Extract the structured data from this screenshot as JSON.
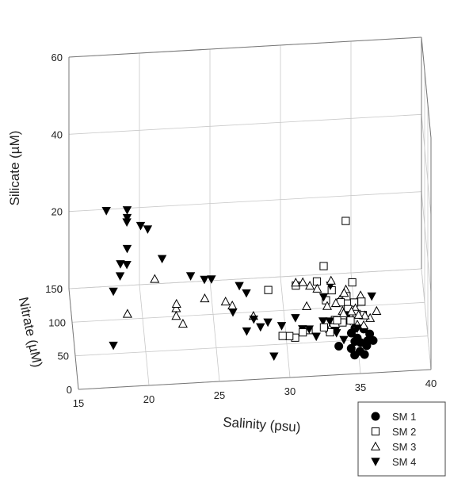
{
  "chart_data": {
    "type": "scatter",
    "projection": "3d",
    "xlabel": "Salinity (psu)",
    "ylabel": "Nitrate (µM)",
    "zlabel": "Silicate (µM)",
    "xlim": [
      15,
      40
    ],
    "ylim": [
      0,
      150
    ],
    "zlim": [
      0,
      60
    ],
    "x_ticks": [
      "15",
      "20",
      "25",
      "30",
      "35",
      "40"
    ],
    "y_ticks": [
      "0",
      "50",
      "100",
      "150"
    ],
    "z_ticks": [
      "0",
      "20",
      "40",
      "60"
    ],
    "grid": true,
    "legend_position": "bottom-right",
    "colors": {
      "marker": "#000000",
      "grid": "#c8c8c8",
      "frame": "#777777"
    },
    "series": [
      {
        "name": "SM 1",
        "marker": "filled-circle",
        "points": [
          {
            "x": 34.6,
            "y": 55,
            "z": 1
          },
          {
            "x": 35.0,
            "y": 50,
            "z": 0.5
          },
          {
            "x": 35.5,
            "y": 60,
            "z": 1
          },
          {
            "x": 35.9,
            "y": 55,
            "z": 0.5
          },
          {
            "x": 34.8,
            "y": 45,
            "z": 0.5
          },
          {
            "x": 35.2,
            "y": 40,
            "z": 1
          },
          {
            "x": 35.7,
            "y": 45,
            "z": 0.5
          },
          {
            "x": 34.5,
            "y": 35,
            "z": 0.5
          },
          {
            "x": 35.1,
            "y": 30,
            "z": 0.5
          },
          {
            "x": 35.6,
            "y": 35,
            "z": 1
          },
          {
            "x": 36.1,
            "y": 45,
            "z": 0.5
          },
          {
            "x": 34.9,
            "y": 65,
            "z": 0.5
          },
          {
            "x": 35.4,
            "y": 25,
            "z": 0.5
          },
          {
            "x": 34.7,
            "y": 25,
            "z": 0.5
          },
          {
            "x": 33.5,
            "y": 8,
            "z": 6
          }
        ]
      },
      {
        "name": "SM 2",
        "marker": "open-square",
        "points": [
          {
            "x": 34.0,
            "y": 10,
            "z": 38
          },
          {
            "x": 32.5,
            "y": 25,
            "z": 24
          },
          {
            "x": 32.0,
            "y": 20,
            "z": 21
          },
          {
            "x": 29.5,
            "y": 5,
            "z": 10
          },
          {
            "x": 30.0,
            "y": 10,
            "z": 9
          },
          {
            "x": 31.0,
            "y": 20,
            "z": 8
          },
          {
            "x": 32.5,
            "y": 20,
            "z": 9
          },
          {
            "x": 33.5,
            "y": 35,
            "z": 8
          },
          {
            "x": 30.5,
            "y": 30,
            "z": 5
          },
          {
            "x": 31.5,
            "y": 40,
            "z": 5
          },
          {
            "x": 33.0,
            "y": 35,
            "z": 5
          },
          {
            "x": 34.5,
            "y": 45,
            "z": 6
          },
          {
            "x": 34.0,
            "y": 60,
            "z": 3
          },
          {
            "x": 35.0,
            "y": 60,
            "z": 5
          },
          {
            "x": 33.5,
            "y": 70,
            "z": 2
          },
          {
            "x": 34.5,
            "y": 85,
            "z": 2
          },
          {
            "x": 35.5,
            "y": 75,
            "z": 2
          },
          {
            "x": 33.0,
            "y": 100,
            "z": 2
          },
          {
            "x": 35.0,
            "y": 100,
            "z": 1
          },
          {
            "x": 34.5,
            "y": 110,
            "z": 1
          },
          {
            "x": 33.5,
            "y": 120,
            "z": 1
          },
          {
            "x": 35.0,
            "y": 130,
            "z": 1
          },
          {
            "x": 31.0,
            "y": 130,
            "z": 1
          },
          {
            "x": 29.0,
            "y": 120,
            "z": 2
          },
          {
            "x": 34.0,
            "y": 90,
            "z": 3
          },
          {
            "x": 35.5,
            "y": 95,
            "z": 2
          }
        ]
      },
      {
        "name": "SM 3",
        "marker": "open-triangle",
        "points": [
          {
            "x": 20.5,
            "y": 20,
            "z": 24
          },
          {
            "x": 18.5,
            "y": 5,
            "z": 18
          },
          {
            "x": 22.0,
            "y": 10,
            "z": 19
          },
          {
            "x": 22.0,
            "y": 15,
            "z": 17
          },
          {
            "x": 22.0,
            "y": 15,
            "z": 15
          },
          {
            "x": 22.5,
            "y": 20,
            "z": 12
          },
          {
            "x": 24.0,
            "y": 10,
            "z": 20
          },
          {
            "x": 25.5,
            "y": 15,
            "z": 18
          },
          {
            "x": 26.0,
            "y": 20,
            "z": 16
          },
          {
            "x": 27.5,
            "y": 20,
            "z": 13
          },
          {
            "x": 30.5,
            "y": 20,
            "z": 21
          },
          {
            "x": 31.0,
            "y": 20,
            "z": 21
          },
          {
            "x": 31.5,
            "y": 20,
            "z": 20
          },
          {
            "x": 32.0,
            "y": 15,
            "z": 20
          },
          {
            "x": 33.0,
            "y": 20,
            "z": 21
          },
          {
            "x": 34.0,
            "y": 35,
            "z": 15
          },
          {
            "x": 34.5,
            "y": 30,
            "z": 11
          },
          {
            "x": 35.0,
            "y": 30,
            "z": 10
          },
          {
            "x": 35.5,
            "y": 40,
            "z": 8
          },
          {
            "x": 34.0,
            "y": 45,
            "z": 8
          },
          {
            "x": 33.0,
            "y": 40,
            "z": 5
          },
          {
            "x": 35.0,
            "y": 50,
            "z": 4
          },
          {
            "x": 35.5,
            "y": 60,
            "z": 2
          },
          {
            "x": 36.0,
            "y": 70,
            "z": 2
          },
          {
            "x": 36.5,
            "y": 80,
            "z": 2
          },
          {
            "x": 35.0,
            "y": 80,
            "z": 3
          },
          {
            "x": 34.0,
            "y": 100,
            "z": 2
          },
          {
            "x": 34.5,
            "y": 120,
            "z": 1
          },
          {
            "x": 35.5,
            "y": 110,
            "z": 1
          },
          {
            "x": 33.0,
            "y": 80,
            "z": 4
          },
          {
            "x": 34.0,
            "y": 60,
            "z": 6
          },
          {
            "x": 31.5,
            "y": 70,
            "z": 6
          },
          {
            "x": 33.5,
            "y": 55,
            "z": 9
          }
        ]
      },
      {
        "name": "SM 4",
        "marker": "filled-triangle-down",
        "points": [
          {
            "x": 17.0,
            "y": 5,
            "z": 45
          },
          {
            "x": 18.5,
            "y": 10,
            "z": 44
          },
          {
            "x": 18.5,
            "y": 10,
            "z": 42
          },
          {
            "x": 18.5,
            "y": 15,
            "z": 40
          },
          {
            "x": 19.5,
            "y": 20,
            "z": 38
          },
          {
            "x": 20.0,
            "y": 20,
            "z": 37
          },
          {
            "x": 18.5,
            "y": 10,
            "z": 34
          },
          {
            "x": 18.0,
            "y": 5,
            "z": 31
          },
          {
            "x": 18.5,
            "y": 15,
            "z": 29
          },
          {
            "x": 18.0,
            "y": 10,
            "z": 27
          },
          {
            "x": 17.5,
            "y": 5,
            "z": 24
          },
          {
            "x": 17.5,
            "y": 5,
            "z": 10
          },
          {
            "x": 21.0,
            "y": 15,
            "z": 30
          },
          {
            "x": 23.0,
            "y": 10,
            "z": 26
          },
          {
            "x": 24.0,
            "y": 15,
            "z": 24
          },
          {
            "x": 24.5,
            "y": 15,
            "z": 24
          },
          {
            "x": 26.5,
            "y": 20,
            "z": 21
          },
          {
            "x": 27.0,
            "y": 20,
            "z": 19
          },
          {
            "x": 26.0,
            "y": 10,
            "z": 16
          },
          {
            "x": 27.5,
            "y": 15,
            "z": 13
          },
          {
            "x": 28.5,
            "y": 15,
            "z": 12
          },
          {
            "x": 27.0,
            "y": 15,
            "z": 10
          },
          {
            "x": 28.0,
            "y": 20,
            "z": 10
          },
          {
            "x": 29.5,
            "y": 20,
            "z": 10
          },
          {
            "x": 30.5,
            "y": 25,
            "z": 11
          },
          {
            "x": 31.0,
            "y": 25,
            "z": 8
          },
          {
            "x": 31.5,
            "y": 30,
            "z": 7
          },
          {
            "x": 32.0,
            "y": 30,
            "z": 5
          },
          {
            "x": 32.5,
            "y": 35,
            "z": 8
          },
          {
            "x": 33.0,
            "y": 40,
            "z": 7
          },
          {
            "x": 32.5,
            "y": 25,
            "z": 16
          },
          {
            "x": 33.0,
            "y": 30,
            "z": 18
          },
          {
            "x": 33.5,
            "y": 45,
            "z": 3
          },
          {
            "x": 34.0,
            "y": 40,
            "z": 2
          },
          {
            "x": 35.0,
            "y": 50,
            "z": 3
          },
          {
            "x": 36.0,
            "y": 45,
            "z": 12
          },
          {
            "x": 34.5,
            "y": 50,
            "z": 5
          },
          {
            "x": 29.0,
            "y": 30,
            "z": 0.5
          },
          {
            "x": 34.5,
            "y": 85,
            "z": 0.5
          },
          {
            "x": 33.5,
            "y": 60,
            "z": 1
          }
        ]
      }
    ]
  }
}
